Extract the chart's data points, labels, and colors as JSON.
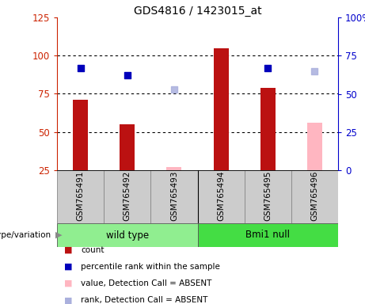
{
  "title": "GDS4816 / 1423015_at",
  "samples": [
    "GSM765491",
    "GSM765492",
    "GSM765493",
    "GSM765494",
    "GSM765495",
    "GSM765496"
  ],
  "count_values": [
    71,
    55,
    null,
    105,
    79,
    null
  ],
  "count_absent_values": [
    null,
    null,
    27,
    null,
    null,
    56
  ],
  "rank_values": [
    67,
    62,
    null,
    null,
    67,
    null
  ],
  "rank_absent_values": [
    null,
    null,
    53,
    null,
    null,
    65
  ],
  "bar_color_present": "#bb1111",
  "bar_color_absent": "#ffb6c1",
  "dot_color_present": "#0000bb",
  "dot_color_absent": "#aab0dd",
  "left_ylim": [
    25,
    125
  ],
  "left_yticks": [
    25,
    50,
    75,
    100,
    125
  ],
  "right_ylim": [
    0,
    100
  ],
  "right_yticks": [
    0,
    25,
    50,
    75,
    100
  ],
  "right_yticklabels": [
    "0",
    "25",
    "50",
    "75",
    "100%"
  ],
  "left_tick_color": "#cc2200",
  "right_tick_color": "#0000cc",
  "bar_width": 0.32,
  "dot_size": 28,
  "wt_color": "#90ee90",
  "bmi_color": "#44dd44",
  "sample_bg": "#cccccc",
  "legend_items": [
    {
      "label": "count",
      "color": "#bb1111"
    },
    {
      "label": "percentile rank within the sample",
      "color": "#0000bb"
    },
    {
      "label": "value, Detection Call = ABSENT",
      "color": "#ffb6c1"
    },
    {
      "label": "rank, Detection Call = ABSENT",
      "color": "#aab0dd"
    }
  ]
}
